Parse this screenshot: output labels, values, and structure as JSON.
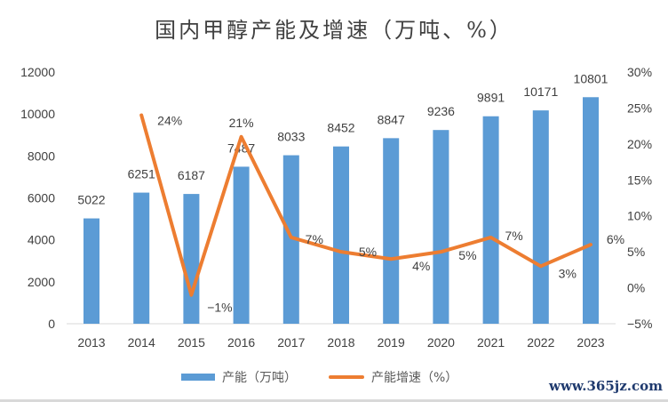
{
  "chart_data": {
    "type": "bar+line",
    "title": "国内甲醇产能及增速（万吨、%）",
    "categories": [
      "2013",
      "2014",
      "2015",
      "2016",
      "2017",
      "2018",
      "2019",
      "2020",
      "2021",
      "2022",
      "2023"
    ],
    "series": [
      {
        "name": "产能（万吨）",
        "type": "bar",
        "axis": "left",
        "color": "#5b9bd5",
        "values": [
          5022,
          6251,
          6187,
          7487,
          8033,
          8452,
          8847,
          9236,
          9891,
          10171,
          10801
        ],
        "labels": [
          "5022",
          "6251",
          "6187",
          "7487",
          "8033",
          "8452",
          "8847",
          "9236",
          "9891",
          "10171",
          "10801"
        ]
      },
      {
        "name": "产能增速（%）",
        "type": "line",
        "axis": "right",
        "color": "#ed7d31",
        "values": [
          null,
          24,
          -1,
          21,
          7,
          5,
          4,
          5,
          7,
          3,
          6
        ],
        "labels": [
          "",
          "24%",
          "−1%",
          "21%",
          "7%",
          "5%",
          "4%",
          "5%",
          "7%",
          "3%",
          "6%"
        ]
      }
    ],
    "y_left": {
      "range": [
        0,
        12000
      ],
      "ticks": [
        "0",
        "2000",
        "4000",
        "6000",
        "8000",
        "10000",
        "12000"
      ]
    },
    "y_right": {
      "range": [
        -5,
        30
      ],
      "ticks": [
        "−5%",
        "0%",
        "5%",
        "10%",
        "15%",
        "20%",
        "25%",
        "30%"
      ]
    },
    "grid": false,
    "legend": "bottom"
  },
  "watermark": "www.365jz.com"
}
